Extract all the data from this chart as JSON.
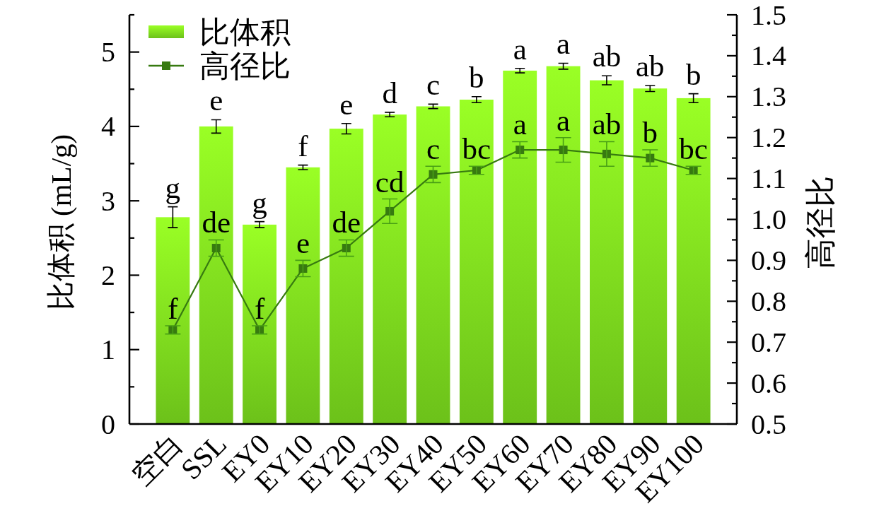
{
  "chart_data": {
    "type": "bar",
    "categories": [
      "空白",
      "SSL",
      "EY0",
      "EY10",
      "EY20",
      "EY30",
      "EY40",
      "EY50",
      "EY60",
      "EY70",
      "EY80",
      "EY90",
      "EY100"
    ],
    "ylabel": "比体积 (mL/g)",
    "y2label": "高径比",
    "ylim": [
      0,
      5.5
    ],
    "yticks": [
      0,
      {
        "value": 0.5,
        "label": null
      },
      1,
      {
        "value": 1.5,
        "label": null
      },
      2,
      {
        "value": 2.5,
        "label": null
      },
      3,
      {
        "value": 3.5,
        "label": null
      },
      4,
      {
        "value": 4.5,
        "label": null
      },
      5,
      {
        "value": 5.5,
        "label": null
      }
    ],
    "y2lim": [
      0.5,
      1.5
    ],
    "y2ticks": [
      0.5,
      {
        "value": 0.55,
        "label": null
      },
      0.6,
      {
        "value": 0.65,
        "label": null
      },
      0.7,
      {
        "value": 0.75,
        "label": null
      },
      0.8,
      {
        "value": 0.85,
        "label": null
      },
      0.9,
      {
        "value": 0.95,
        "label": null
      },
      {
        "value": 1,
        "label": "1.0"
      },
      {
        "value": 1.05,
        "label": null
      },
      1.1,
      {
        "value": 1.15,
        "label": null
      },
      1.2,
      {
        "value": 1.25,
        "label": null
      },
      1.3,
      {
        "value": 1.35,
        "label": null
      },
      1.4,
      {
        "value": 1.45,
        "label": null
      },
      1.5
    ],
    "series": [
      {
        "name": "比体积",
        "color": "#7ee01e",
        "values": [
          2.78,
          4.0,
          2.68,
          3.45,
          3.97,
          4.16,
          4.27,
          4.36,
          4.75,
          4.81,
          4.62,
          4.51,
          4.38
        ],
        "errors": [
          0.14,
          0.09,
          0.04,
          0.03,
          0.07,
          0.03,
          0.03,
          0.04,
          0.03,
          0.04,
          0.06,
          0.04,
          0.06
        ],
        "value_labels": [
          "g",
          "e",
          "g",
          "f",
          "e",
          "d",
          "c",
          "b",
          "a",
          "a",
          "ab",
          "ab",
          "b"
        ]
      },
      {
        "name": "高径比",
        "type": "line",
        "axis": "y2",
        "color": "#377a10",
        "values": [
          0.73,
          0.93,
          0.73,
          0.88,
          0.93,
          1.02,
          1.11,
          1.12,
          1.17,
          1.17,
          1.16,
          1.15,
          1.12
        ],
        "errors": [
          0.01,
          0.02,
          0.01,
          0.02,
          0.02,
          0.03,
          0.02,
          0.01,
          0.02,
          0.03,
          0.03,
          0.02,
          0.01
        ],
        "value_labels": [
          "f",
          "de",
          "f",
          "e",
          "de",
          "cd",
          "c",
          "bc",
          "a",
          "a",
          "ab",
          "b",
          "bc"
        ]
      }
    ],
    "marker": "square",
    "legend": "top left"
  }
}
